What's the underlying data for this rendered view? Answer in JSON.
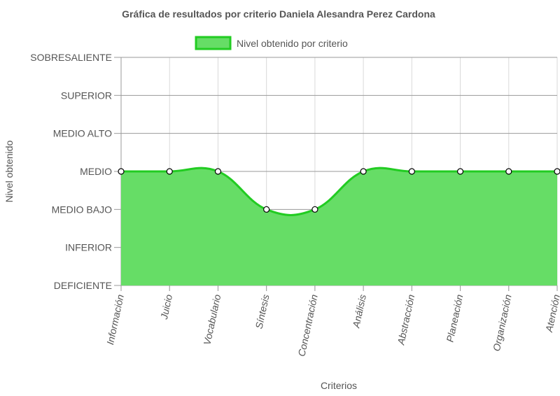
{
  "chart_data": {
    "type": "area",
    "title": "Gráfica de resultados por criterio Daniela Alesandra Perez Cardona",
    "xlabel": "Criterios",
    "ylabel": "Nivel obtenido",
    "y_levels": [
      "DEFICIENTE",
      "INFERIOR",
      "MEDIO BAJO",
      "MEDIO",
      "MEDIO ALTO",
      "SUPERIOR",
      "SOBRESALIENTE"
    ],
    "categories": [
      "Información",
      "Juicio",
      "Vocabulario",
      "Síntesis",
      "Concentración",
      "Análisis",
      "Abstracción",
      "Planeación",
      "Organización",
      "Atención"
    ],
    "series": [
      {
        "name": "Nivel obtenido por criterio",
        "values": [
          3,
          3,
          3,
          2,
          2,
          3,
          3,
          3,
          3,
          3
        ],
        "labels": [
          "MEDIO",
          "MEDIO",
          "MEDIO",
          "MEDIO BAJO",
          "MEDIO BAJO",
          "MEDIO",
          "MEDIO",
          "MEDIO",
          "MEDIO",
          "MEDIO"
        ]
      }
    ],
    "ylim": [
      0,
      6
    ],
    "grid": true,
    "legend_position": "top-center",
    "colors": {
      "fill": "#66dd66",
      "stroke": "#22cc22",
      "point_fill": "#ffffff",
      "point_stroke": "#000000"
    }
  }
}
